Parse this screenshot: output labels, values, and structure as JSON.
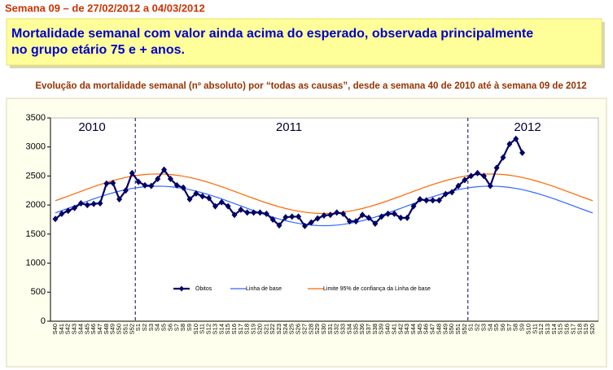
{
  "header": {
    "week": "Semana 09 – de 27/02/2012 a 04/03/2012",
    "highlight": [
      "Mortalidade semanal com valor ainda acima do esperado, observada principalmente",
      "no grupo etário 75 e + anos."
    ]
  },
  "chart_data": {
    "type": "line",
    "title": "Evolução da mortalidade semanal (nº absoluto) por “todas as causas”, desde a semana 40 de 2010 até à semana 09 de 2012",
    "annotations": [
      "2010",
      "2011",
      "2012"
    ],
    "categories": [
      "S40",
      "S41",
      "S42",
      "S43",
      "S44",
      "S45",
      "S46",
      "S47",
      "S48",
      "S49",
      "S50",
      "S51",
      "S52",
      "S1",
      "S2",
      "S3",
      "S4",
      "S5",
      "S6",
      "S7",
      "S8",
      "S9",
      "S10",
      "S11",
      "S12",
      "S13",
      "S14",
      "S15",
      "S16",
      "S17",
      "S18",
      "S19",
      "S20",
      "S21",
      "S22",
      "S23",
      "S24",
      "S25",
      "S26",
      "S27",
      "S28",
      "S29",
      "S30",
      "S31",
      "S32",
      "S33",
      "S34",
      "S35",
      "S36",
      "S37",
      "S38",
      "S39",
      "S40",
      "S41",
      "S42",
      "S43",
      "S44",
      "S45",
      "S46",
      "S47",
      "S48",
      "S49",
      "S50",
      "S51",
      "S52",
      "S1",
      "S2",
      "S3",
      "S4",
      "S5",
      "S6",
      "S7",
      "S8",
      "S9",
      "S10",
      "S11",
      "S12",
      "S13",
      "S14",
      "S15",
      "S16",
      "S17",
      "S18",
      "S19",
      "S20"
    ],
    "ylim": [
      0,
      3500
    ],
    "yticks": [
      0,
      500,
      1000,
      1500,
      2000,
      2500,
      3000,
      3500
    ],
    "series": [
      {
        "name": "Óbitos",
        "color": "#000066",
        "marker": "diamond",
        "values": [
          1760,
          1850,
          1900,
          1950,
          2030,
          2000,
          2020,
          2030,
          2370,
          2380,
          2100,
          2250,
          2550,
          2400,
          2340,
          2330,
          2450,
          2610,
          2450,
          2340,
          2300,
          2100,
          2200,
          2150,
          2120,
          1980,
          2050,
          1980,
          1830,
          1920,
          1870,
          1870,
          1870,
          1850,
          1750,
          1650,
          1790,
          1800,
          1800,
          1640,
          1700,
          1770,
          1820,
          1830,
          1870,
          1850,
          1720,
          1720,
          1830,
          1780,
          1680,
          1800,
          1850,
          1850,
          1780,
          1780,
          1980,
          2100,
          2080,
          2080,
          2080,
          2190,
          2220,
          2330,
          2430,
          2500,
          2550,
          2500,
          2330,
          2640,
          2820,
          3050,
          3140,
          2900,
          null,
          null,
          null,
          null,
          null,
          null,
          null,
          null,
          null,
          null,
          null
        ]
      },
      {
        "name": "Linha de base",
        "color": "#3366ff",
        "values": [
          1864,
          1904,
          1944,
          1985,
          2026,
          2066,
          2106,
          2143,
          2178,
          2210,
          2239,
          2265,
          2286,
          2303,
          2315,
          2323,
          2325,
          2323,
          2315,
          2303,
          2286,
          2265,
          2239,
          2210,
          2178,
          2143,
          2106,
          2066,
          2026,
          1985,
          1944,
          1904,
          1864,
          1827,
          1792,
          1760,
          1731,
          1705,
          1684,
          1667,
          1655,
          1647,
          1645,
          1647,
          1655,
          1667,
          1684,
          1705,
          1731,
          1760,
          1792,
          1827,
          1864,
          1904,
          1944,
          1985,
          2026,
          2066,
          2106,
          2143,
          2178,
          2210,
          2239,
          2265,
          2286,
          2303,
          2315,
          2323,
          2325,
          2323,
          2315,
          2303,
          2286,
          2265,
          2239,
          2210,
          2178,
          2143,
          2106,
          2066,
          2026,
          1985,
          1944,
          1904,
          1864
        ]
      },
      {
        "name": "Limite 95% de confiança da Linha de base",
        "color": "#ff6600",
        "values": [
          2074,
          2114,
          2154,
          2195,
          2236,
          2276,
          2316,
          2353,
          2388,
          2420,
          2449,
          2475,
          2496,
          2513,
          2525,
          2533,
          2535,
          2533,
          2525,
          2513,
          2496,
          2475,
          2449,
          2420,
          2388,
          2353,
          2316,
          2276,
          2236,
          2195,
          2154,
          2114,
          2074,
          2037,
          2002,
          1970,
          1941,
          1915,
          1894,
          1877,
          1865,
          1857,
          1855,
          1857,
          1865,
          1877,
          1894,
          1915,
          1941,
          1970,
          2002,
          2037,
          2074,
          2114,
          2154,
          2195,
          2236,
          2276,
          2316,
          2353,
          2388,
          2420,
          2449,
          2475,
          2496,
          2513,
          2525,
          2533,
          2535,
          2533,
          2525,
          2513,
          2496,
          2475,
          2449,
          2420,
          2388,
          2353,
          2316,
          2276,
          2236,
          2195,
          2154,
          2114,
          2074
        ]
      }
    ]
  }
}
